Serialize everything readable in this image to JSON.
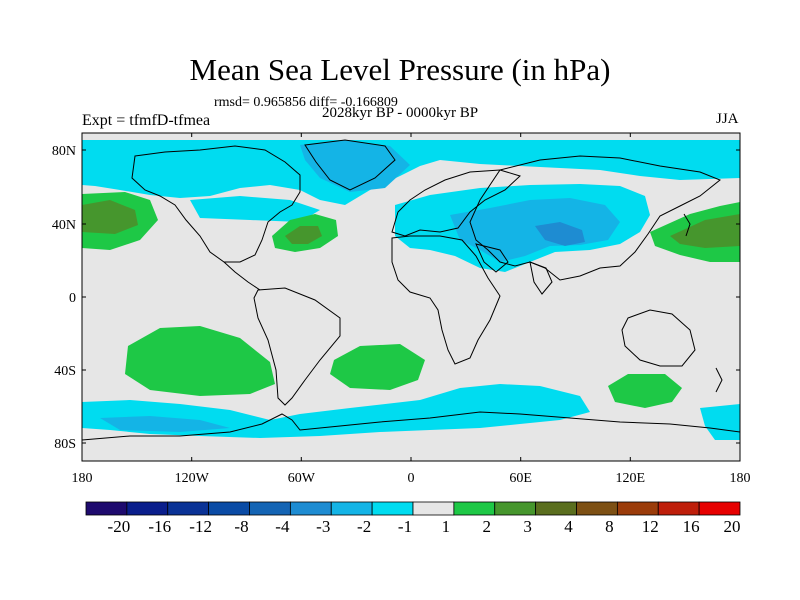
{
  "title": "Mean Sea Level Pressure (in hPa)",
  "stats": "rmsd= 0.965856 diff= -0.166809",
  "experiment": "Expt = tfmfD-tfmea",
  "period": "2028kyr BP - 0000kyr BP",
  "season": "JJA",
  "colors": {
    "ocean_background": "#e6e6e6",
    "coastline": "#000000"
  },
  "lat_labels": [
    "80N",
    "40N",
    "0",
    "40S",
    "80S"
  ],
  "lon_labels": [
    "180",
    "120W",
    "60W",
    "0",
    "60E",
    "120E",
    "180"
  ],
  "colorbar": {
    "labels": [
      "-20",
      "-16",
      "-12",
      "-8",
      "-4",
      "-3",
      "-2",
      "-1",
      "1",
      "2",
      "3",
      "4",
      "8",
      "12",
      "16",
      "20"
    ],
    "colors": [
      "#1e0a6e",
      "#0a1e8c",
      "#0a3296",
      "#0a4ba5",
      "#1464b4",
      "#1e8cd2",
      "#14b4e6",
      "#00dcf0",
      "#e6e6e6",
      "#1ec846",
      "#46962d",
      "#5a6e1e",
      "#7d5014",
      "#9b3c0a",
      "#be1e0a",
      "#e60000"
    ]
  }
}
